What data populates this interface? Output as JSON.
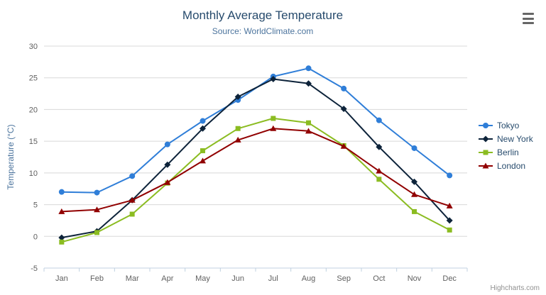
{
  "credits": "Highcharts.com",
  "export_menu": {
    "icon": "hamburger-icon"
  },
  "chart_data": {
    "type": "line",
    "title": "Monthly Average Temperature",
    "subtitle": "Source: WorldClimate.com",
    "categories": [
      "Jan",
      "Feb",
      "Mar",
      "Apr",
      "May",
      "Jun",
      "Jul",
      "Aug",
      "Sep",
      "Oct",
      "Nov",
      "Dec"
    ],
    "xlabel": "",
    "ylabel": "Temperature (°C)",
    "ylim": [
      -5,
      30
    ],
    "ytick_interval": 5,
    "grid": true,
    "legend_position": "right",
    "colors": {
      "title": "#274b6d",
      "subtitle": "#4d759e",
      "axis_label": "#606060",
      "gridline": "#d8d8d8",
      "axis_line": "#c0d0e0"
    },
    "series": [
      {
        "name": "Tokyo",
        "color": "#2f7ed8",
        "marker": "circle",
        "values": [
          7.0,
          6.9,
          9.5,
          14.5,
          18.2,
          21.5,
          25.2,
          26.5,
          23.3,
          18.3,
          13.9,
          9.6
        ]
      },
      {
        "name": "New York",
        "color": "#0d233a",
        "marker": "diamond",
        "values": [
          -0.2,
          0.8,
          5.7,
          11.3,
          17.0,
          22.0,
          24.8,
          24.1,
          20.1,
          14.1,
          8.6,
          2.5
        ]
      },
      {
        "name": "Berlin",
        "color": "#8bbc21",
        "marker": "square",
        "values": [
          -0.9,
          0.6,
          3.5,
          8.4,
          13.5,
          17.0,
          18.6,
          17.9,
          14.3,
          9.0,
          3.9,
          1.0
        ]
      },
      {
        "name": "London",
        "color": "#910000",
        "marker": "triangle",
        "values": [
          3.9,
          4.2,
          5.7,
          8.5,
          11.9,
          15.2,
          17.0,
          16.6,
          14.2,
          10.3,
          6.6,
          4.8
        ]
      }
    ]
  }
}
